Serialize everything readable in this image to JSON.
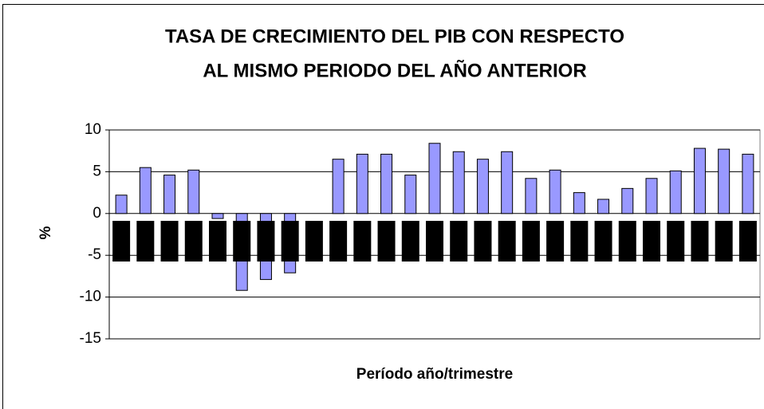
{
  "chart_data": {
    "type": "bar",
    "title": [
      "TASA DE CRECIMIENTO DEL PIB CON RESPECTO",
      "AL MISMO PERIODO DEL AÑO ANTERIOR"
    ],
    "x_label": "Período año/trimestre",
    "y_label": "%",
    "categories": [
      null,
      null,
      null,
      null,
      null,
      null,
      null,
      null,
      null,
      null,
      null,
      null,
      null,
      null,
      null,
      null,
      null,
      null,
      null,
      null,
      null,
      null,
      null,
      null,
      null,
      null,
      null
    ],
    "values": [
      2.2,
      5.5,
      4.6,
      5.2,
      -0.6,
      -9.2,
      -7.9,
      -7.1,
      0,
      6.5,
      7.1,
      7.1,
      4.6,
      8.4,
      7.4,
      6.5,
      7.4,
      4.2,
      5.2,
      2.5,
      1.7,
      3.0,
      4.2,
      5.1,
      7.8,
      7.7,
      7.1
    ],
    "color": "#9999ff",
    "ylim": [
      -15,
      10
    ],
    "yticks": [
      -15,
      -10,
      -5,
      0,
      5,
      10
    ],
    "grid": true
  }
}
